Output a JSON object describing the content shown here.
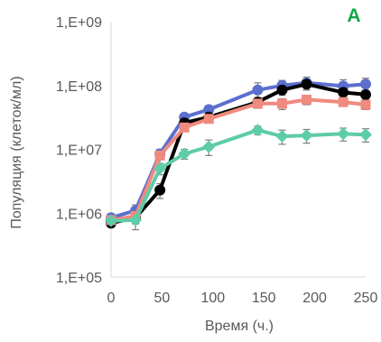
{
  "chart_data": {
    "type": "line",
    "panel_label": "A",
    "panel_label_color": "#13a64a",
    "title": "",
    "xlabel": "Время (ч.)",
    "ylabel": "Популяция (клеток/мл)",
    "xlim": [
      0,
      250
    ],
    "ylim": [
      100000,
      1000000000
    ],
    "y_scale": "log",
    "x_ticks": [
      0,
      50,
      100,
      150,
      200,
      250
    ],
    "x_tick_labels": [
      "0",
      "50",
      "100",
      "150",
      "200",
      "250"
    ],
    "y_ticks": [
      100000,
      1000000,
      10000000,
      100000000,
      1000000000
    ],
    "y_tick_labels": [
      "1,E+05",
      "1,E+06",
      "1,E+07",
      "1,E+08",
      "1,E+09"
    ],
    "grid": false,
    "legend": "none",
    "x": [
      0,
      24,
      48,
      72,
      96,
      144,
      168,
      192,
      228,
      250
    ],
    "series": [
      {
        "color": "#5b6fcf",
        "marker": "circle",
        "values": [
          850000,
          1100000,
          8500000,
          32000000,
          42000000,
          85000000,
          100000000,
          110000000,
          98000000,
          105000000
        ],
        "errors": [
          120000,
          250000,
          1500000,
          4000000,
          5000000,
          25000000,
          20000000,
          25000000,
          25000000,
          25000000
        ]
      },
      {
        "color": "#000000",
        "marker": "circle",
        "values": [
          700000,
          850000,
          2300000,
          26000000,
          32000000,
          55000000,
          85000000,
          105000000,
          78000000,
          72000000
        ],
        "errors": [
          100000,
          300000,
          600000,
          4000000,
          4000000,
          10000000,
          15000000,
          20000000,
          15000000,
          12000000
        ]
      },
      {
        "color": "#f08a7e",
        "marker": "square",
        "values": [
          780000,
          900000,
          8000000,
          22000000,
          30000000,
          52000000,
          52000000,
          60000000,
          55000000,
          50000000
        ],
        "errors": [
          100000,
          200000,
          2000000,
          3000000,
          4000000,
          8000000,
          10000000,
          10000000,
          8000000,
          8000000
        ]
      },
      {
        "color": "#5dcca8",
        "marker": "diamond",
        "values": [
          760000,
          780000,
          5000000,
          8500000,
          11000000,
          20000000,
          16000000,
          16500000,
          17500000,
          17000000
        ],
        "errors": [
          100000,
          100000,
          1000000,
          1500000,
          3000000,
          3000000,
          4000000,
          4000000,
          4000000,
          4000000
        ]
      }
    ]
  }
}
